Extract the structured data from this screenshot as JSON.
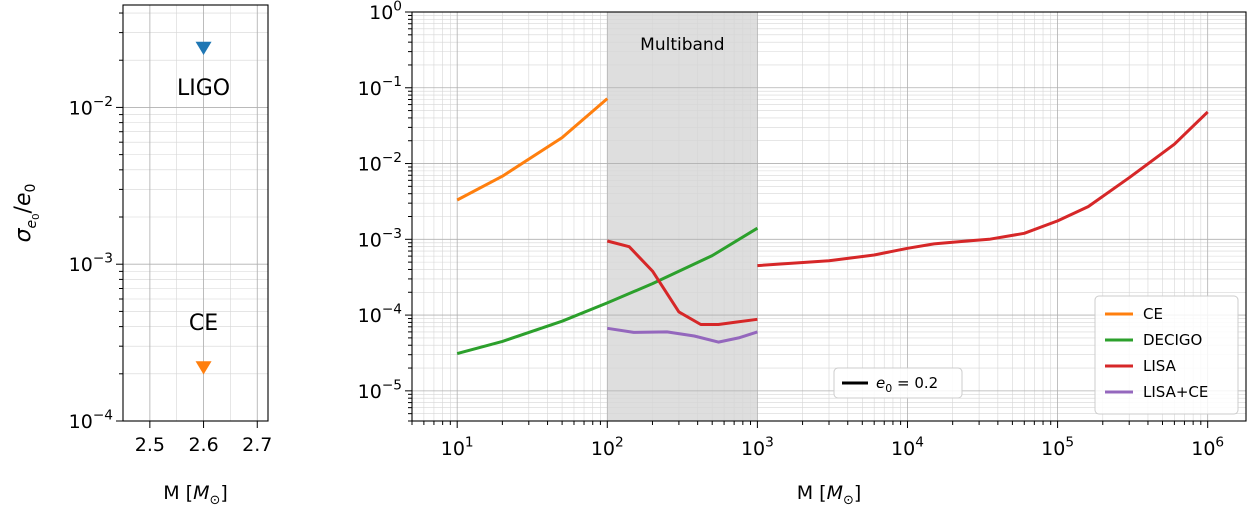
{
  "chart_data": [
    {
      "type": "scatter",
      "xlabel": "M [M⊙]",
      "ylabel": "σe0/e0",
      "xlim": [
        2.45,
        2.72
      ],
      "ylim": [
        0.0001,
        0.045
      ],
      "log_y": true,
      "grid": true,
      "xticks": [
        2.5,
        2.6,
        2.7
      ],
      "xtick_labels": [
        "2.5",
        "2.6",
        "2.7"
      ],
      "yticks": [
        0.0001,
        0.001,
        0.01
      ],
      "ytick_labels": [
        {
          "base": "10",
          "exp": "−4"
        },
        {
          "base": "10",
          "exp": "−3"
        },
        {
          "base": "10",
          "exp": "−2"
        }
      ],
      "points": [
        {
          "label": "LIGO",
          "x": 2.6,
          "y": 0.024,
          "color": "#1f77b4",
          "marker": "triangle-down"
        },
        {
          "label": "CE",
          "x": 2.6,
          "y": 0.00022,
          "color": "#ff7f0e",
          "marker": "triangle-down"
        }
      ],
      "annotations": [
        {
          "text": "LIGO",
          "x": 2.6,
          "y": 0.012
        },
        {
          "text": "CE",
          "x": 2.6,
          "y": 0.00038
        }
      ]
    },
    {
      "type": "line",
      "xlabel": "M [M⊙]",
      "xlim": [
        5,
        1800000
      ],
      "ylim": [
        4e-06,
        1
      ],
      "log_x": true,
      "log_y": true,
      "grid": true,
      "xticks": [
        10,
        100,
        1000,
        10000,
        100000,
        1000000
      ],
      "xtick_labels": [
        {
          "base": "10",
          "exp": "1"
        },
        {
          "base": "10",
          "exp": "2"
        },
        {
          "base": "10",
          "exp": "3"
        },
        {
          "base": "10",
          "exp": "4"
        },
        {
          "base": "10",
          "exp": "5"
        },
        {
          "base": "10",
          "exp": "6"
        }
      ],
      "yticks": [
        1e-05,
        0.0001,
        0.001,
        0.01,
        0.1,
        1
      ],
      "ytick_labels": [
        {
          "base": "10",
          "exp": "−5"
        },
        {
          "base": "10",
          "exp": "−4"
        },
        {
          "base": "10",
          "exp": "−3"
        },
        {
          "base": "10",
          "exp": "−2"
        },
        {
          "base": "10",
          "exp": "−1"
        },
        {
          "base": "10",
          "exp": "0"
        }
      ],
      "shaded_region": {
        "x": [
          100,
          1000
        ],
        "label": "Multiband",
        "color": "#d3d3d3"
      },
      "series": [
        {
          "name": "CE",
          "color": "#ff7f0e",
          "segments": [
            [
              [
                10,
                0.0033
              ],
              [
                20,
                0.0068
              ],
              [
                50,
                0.022
              ],
              [
                100,
                0.072
              ]
            ]
          ]
        },
        {
          "name": "DECIGO",
          "color": "#2ca02c",
          "segments": [
            [
              [
                10,
                3.1e-05
              ],
              [
                20,
                4.5e-05
              ],
              [
                50,
                8.3e-05
              ],
              [
                100,
                0.000145
              ],
              [
                200,
                0.00026
              ],
              [
                500,
                0.00061
              ],
              [
                1000,
                0.0014
              ]
            ]
          ]
        },
        {
          "name": "LISA",
          "color": "#d62728",
          "segments": [
            [
              [
                100,
                0.00095
              ],
              [
                140,
                0.0008
              ],
              [
                200,
                0.00038
              ],
              [
                300,
                0.00011
              ],
              [
                420,
                7.5e-05
              ],
              [
                550,
                7.5e-05
              ],
              [
                700,
                8e-05
              ],
              [
                1000,
                8.8e-05
              ]
            ],
            [
              [
                1000,
                0.00045
              ],
              [
                3000,
                0.00052
              ],
              [
                6000,
                0.00062
              ],
              [
                10000,
                0.00076
              ],
              [
                15000,
                0.00087
              ],
              [
                25000,
                0.00095
              ],
              [
                35000,
                0.001
              ],
              [
                60000,
                0.0012
              ],
              [
                100000,
                0.00175
              ],
              [
                160000,
                0.0027
              ],
              [
                300000,
                0.0065
              ],
              [
                600000,
                0.018
              ],
              [
                1000000,
                0.048
              ]
            ]
          ]
        },
        {
          "name": "LISA+CE",
          "color": "#9467bd",
          "segments": [
            [
              [
                100,
                6.7e-05
              ],
              [
                150,
                5.9e-05
              ],
              [
                250,
                6e-05
              ],
              [
                380,
                5.3e-05
              ],
              [
                550,
                4.4e-05
              ],
              [
                750,
                5e-05
              ],
              [
                1000,
                6e-05
              ]
            ]
          ]
        }
      ],
      "legend": {
        "placement": "lower-right",
        "entries": [
          "CE",
          "DECIGO",
          "LISA",
          "LISA+CE"
        ]
      },
      "style_legend": {
        "placement": "bottom-center",
        "entries": [
          {
            "label_base": "e",
            "label_sub": "0",
            "label_rest": " = 0.2",
            "color": "#000000"
          }
        ]
      }
    }
  ]
}
